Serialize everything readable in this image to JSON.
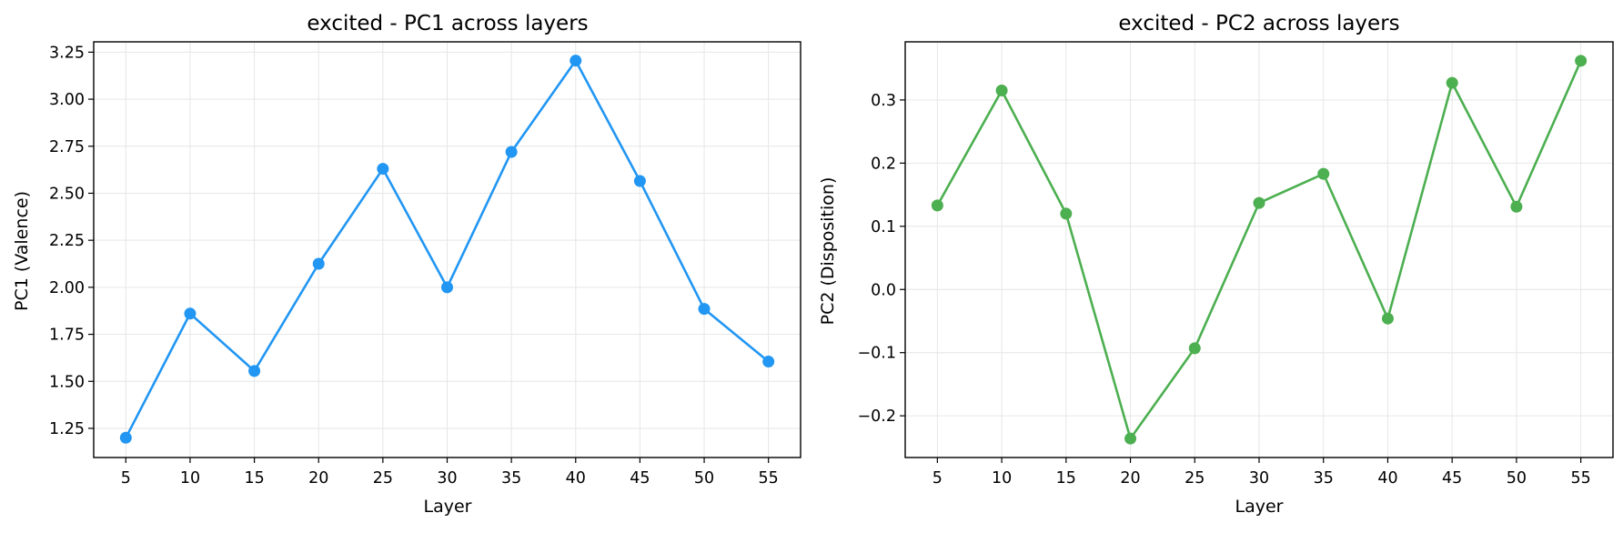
{
  "chart_data": [
    {
      "type": "line",
      "title": "excited - PC1 across layers",
      "xlabel": "Layer",
      "ylabel": "PC1 (Valence)",
      "x": [
        5,
        10,
        15,
        20,
        25,
        30,
        35,
        40,
        45,
        50,
        55
      ],
      "xticks": [
        "5",
        "10",
        "15",
        "20",
        "25",
        "30",
        "35",
        "40",
        "45",
        "50",
        "55"
      ],
      "yticks": [
        "1.25",
        "1.50",
        "1.75",
        "2.00",
        "2.25",
        "2.50",
        "2.75",
        "3.00",
        "3.25"
      ],
      "ytick_values": [
        1.25,
        1.5,
        1.75,
        2.0,
        2.25,
        2.5,
        2.75,
        3.0,
        3.25
      ],
      "xlim": [
        2.5,
        57.5
      ],
      "ylim": [
        1.095,
        3.305
      ],
      "grid": true,
      "series": [
        {
          "color": "#2196f3",
          "marker": "circle",
          "values": [
            1.2,
            1.86,
            1.555,
            2.125,
            2.63,
            2.0,
            2.72,
            3.205,
            2.565,
            1.885,
            1.605
          ]
        }
      ]
    },
    {
      "type": "line",
      "title": "excited - PC2 across layers",
      "xlabel": "Layer",
      "ylabel": "PC2 (Disposition)",
      "x": [
        5,
        10,
        15,
        20,
        25,
        30,
        35,
        40,
        45,
        50,
        55
      ],
      "xticks": [
        "5",
        "10",
        "15",
        "20",
        "25",
        "30",
        "35",
        "40",
        "45",
        "50",
        "55"
      ],
      "yticks": [
        "−0.2",
        "−0.1",
        "0.0",
        "0.1",
        "0.2",
        "0.3"
      ],
      "ytick_values": [
        -0.2,
        -0.1,
        0.0,
        0.1,
        0.2,
        0.3
      ],
      "xlim": [
        2.5,
        57.5
      ],
      "ylim": [
        -0.266,
        0.392
      ],
      "grid": true,
      "series": [
        {
          "color": "#4caf50",
          "marker": "circle",
          "values": [
            0.133,
            0.315,
            0.12,
            -0.236,
            -0.093,
            0.137,
            0.183,
            -0.046,
            0.327,
            0.131,
            0.362
          ]
        }
      ]
    }
  ]
}
